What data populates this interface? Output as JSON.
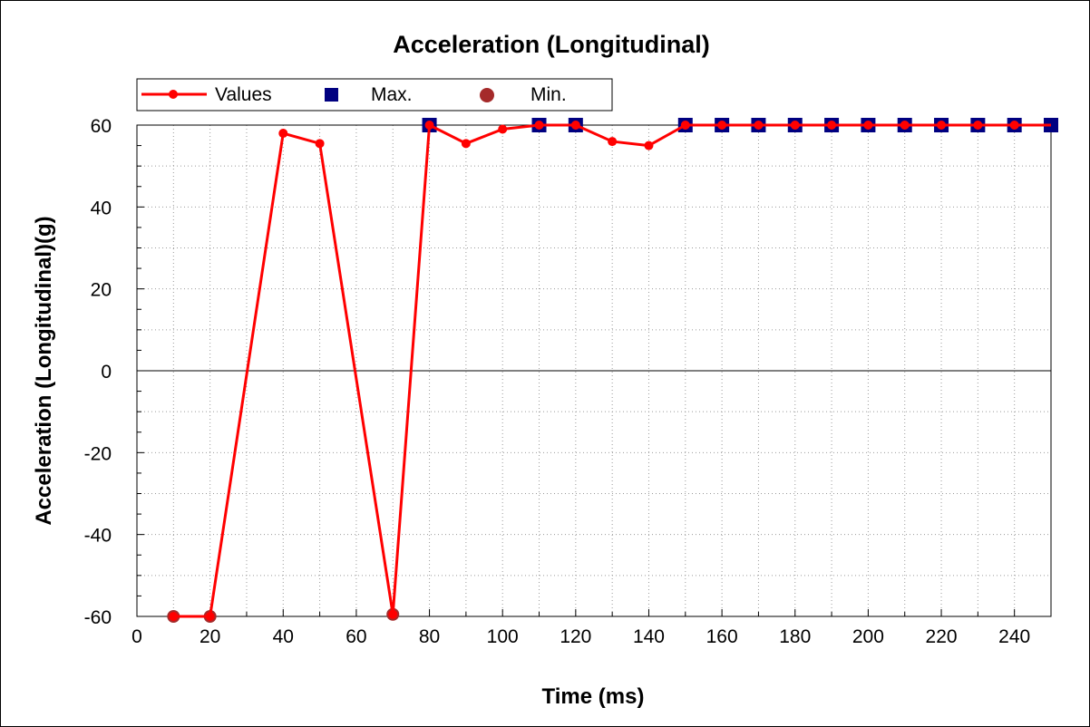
{
  "chart_data": {
    "type": "line",
    "title": "Acceleration (Longitudinal)",
    "xlabel": "Time (ms)",
    "ylabel": "Acceleration (Longitudinal)(g)",
    "xlim": [
      0,
      250
    ],
    "ylim": [
      -60,
      60
    ],
    "x_ticks": [
      0,
      20,
      40,
      60,
      80,
      100,
      120,
      140,
      160,
      180,
      200,
      220,
      240
    ],
    "y_ticks": [
      60,
      40,
      20,
      0,
      -20,
      -40,
      -60
    ],
    "grid": true,
    "legend_position": "top-left",
    "series": [
      {
        "name": "Values",
        "color": "#ff0000",
        "marker": "circle",
        "x": [
          10,
          20,
          40,
          50,
          70,
          80,
          90,
          100,
          110,
          120,
          130,
          140,
          150,
          160,
          170,
          180,
          190,
          200,
          210,
          220,
          230,
          240,
          250
        ],
        "y": [
          -60,
          -60,
          58,
          55.5,
          -59.5,
          60,
          55.5,
          59,
          60,
          60,
          56,
          55,
          60,
          60,
          60,
          60,
          60,
          60,
          60,
          60,
          60,
          60,
          60
        ],
        "extra_line": [
          [
            10,
            -60
          ],
          [
            20,
            -60
          ]
        ]
      },
      {
        "name": "Max.",
        "color": "#000080",
        "marker": "square",
        "x": [
          80,
          110,
          120,
          150,
          160,
          170,
          180,
          190,
          200,
          210,
          220,
          230,
          240,
          250
        ],
        "y": [
          60,
          60,
          60,
          60,
          60,
          60,
          60,
          60,
          60,
          60,
          60,
          60,
          60,
          60
        ]
      },
      {
        "name": "Min.",
        "color": "#a52a2a",
        "marker": "circle",
        "x": [
          10,
          20,
          70
        ],
        "y": [
          -60,
          -60,
          -59.5
        ]
      }
    ]
  }
}
